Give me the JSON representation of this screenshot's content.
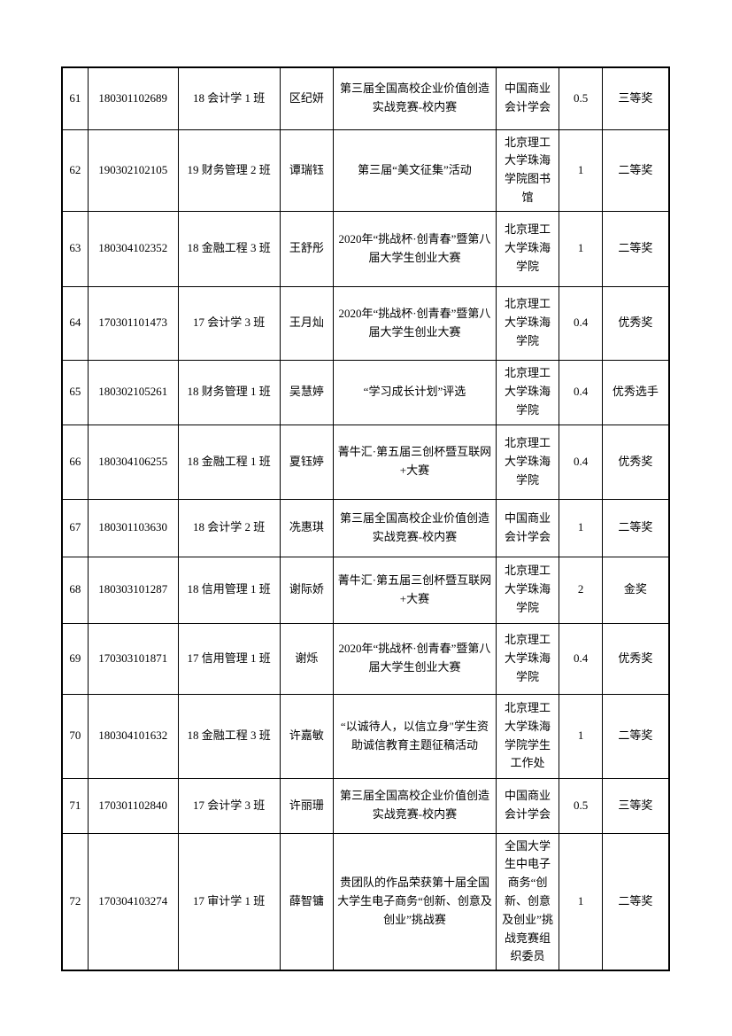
{
  "table": {
    "rows": [
      {
        "no": "61",
        "student_id": "180301102689",
        "class": "18 会计学 1 班",
        "name": "区纪妍",
        "competition": "第三届全国高校企业价值创造实战竞赛-校内赛",
        "organizer": "中国商业会计学会",
        "credit": "0.5",
        "award": "三等奖"
      },
      {
        "no": "62",
        "student_id": "190302102105",
        "class": "19 财务管理 2 班",
        "name": "谭瑞钰",
        "competition": "第三届“美文征集”活动",
        "organizer": "北京理工大学珠海学院图书馆",
        "credit": "1",
        "award": "二等奖"
      },
      {
        "no": "63",
        "student_id": "180304102352",
        "class": "18 金融工程 3 班",
        "name": "王舒彤",
        "competition": "2020年“挑战杯·创青春”暨第八届大学生创业大赛",
        "organizer": "北京理工大学珠海学院",
        "credit": "1",
        "award": "二等奖"
      },
      {
        "no": "64",
        "student_id": "170301101473",
        "class": "17 会计学 3 班",
        "name": "王月灿",
        "competition": "2020年“挑战杯·创青春”暨第八届大学生创业大赛",
        "organizer": "北京理工大学珠海学院",
        "credit": "0.4",
        "award": "优秀奖"
      },
      {
        "no": "65",
        "student_id": "180302105261",
        "class": "18 财务管理 1 班",
        "name": "吴慧婷",
        "competition": "“学习成长计划”评选",
        "organizer": "北京理工大学珠海学院",
        "credit": "0.4",
        "award": "优秀选手"
      },
      {
        "no": "66",
        "student_id": "180304106255",
        "class": "18 金融工程 1 班",
        "name": "夏钰婷",
        "competition": "菁牛汇·第五届三创杯暨互联网+大赛",
        "organizer": "北京理工大学珠海学院",
        "credit": "0.4",
        "award": "优秀奖"
      },
      {
        "no": "67",
        "student_id": "180301103630",
        "class": "18 会计学 2 班",
        "name": "冼惠琪",
        "competition": "第三届全国高校企业价值创造实战竞赛-校内赛",
        "organizer": "中国商业会计学会",
        "credit": "1",
        "award": "二等奖"
      },
      {
        "no": "68",
        "student_id": "180303101287",
        "class": "18 信用管理 1 班",
        "name": "谢际娇",
        "competition": "菁牛汇·第五届三创杯暨互联网+大赛",
        "organizer": "北京理工大学珠海学院",
        "credit": "2",
        "award": "金奖"
      },
      {
        "no": "69",
        "student_id": "170303101871",
        "class": "17 信用管理 1 班",
        "name": "谢烁",
        "competition": "2020年“挑战杯·创青春”暨第八届大学生创业大赛",
        "organizer": "北京理工大学珠海学院",
        "credit": "0.4",
        "award": "优秀奖"
      },
      {
        "no": "70",
        "student_id": "180304101632",
        "class": "18 金融工程 3 班",
        "name": "许嘉敏",
        "competition": "“以诚待人，以信立身\"学生资助诚信教育主题征稿活动",
        "organizer": "北京理工大学珠海学院学生工作处",
        "credit": "1",
        "award": "二等奖"
      },
      {
        "no": "71",
        "student_id": "170301102840",
        "class": "17 会计学 3 班",
        "name": "许丽珊",
        "competition": "第三届全国高校企业价值创造实战竞赛-校内赛",
        "organizer": "中国商业会计学会",
        "credit": "0.5",
        "award": "三等奖"
      },
      {
        "no": "72",
        "student_id": "170304103274",
        "class": "17 审计学 1 班",
        "name": "薛智镛",
        "competition": "贵团队的作品荣获第十届全国大学生电子商务“创新、创意及创业”挑战赛",
        "organizer": "全国大学生中电子商务“创新、创意及创业”挑战竞赛组织委员",
        "credit": "1",
        "award": "二等奖"
      }
    ]
  }
}
